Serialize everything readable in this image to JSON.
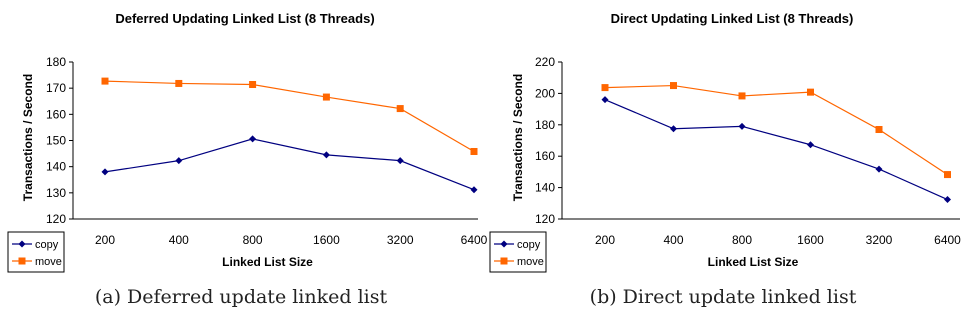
{
  "chart_data": [
    {
      "type": "line",
      "title": "Deferred Updating Linked List (8 Threads)",
      "xlabel": "Linked List Size",
      "ylabel": "Transactions / Second",
      "categories": [
        "200",
        "400",
        "800",
        "1600",
        "3200",
        "6400"
      ],
      "ylim": [
        120,
        180
      ],
      "yticks": [
        120,
        130,
        140,
        150,
        160,
        170,
        180
      ],
      "grid": false,
      "legend": "bottom-left",
      "series": [
        {
          "name": "copy",
          "values": [
            138,
            142.3,
            150.6,
            144.5,
            142.3,
            131.2
          ],
          "color": "#000080",
          "marker": "diamond"
        },
        {
          "name": "move",
          "values": [
            172.7,
            171.8,
            171.4,
            166.6,
            162.2,
            145.8
          ],
          "color": "#ff6600",
          "marker": "square"
        }
      ],
      "caption": "(a) Deferred update linked list"
    },
    {
      "type": "line",
      "title": "Direct Updating Linked List (8 Threads)",
      "xlabel": "Linked List Size",
      "ylabel": "Transactions / Second",
      "categories": [
        "200",
        "400",
        "800",
        "1600",
        "3200",
        "6400"
      ],
      "ylim": [
        120,
        220
      ],
      "yticks": [
        120,
        140,
        160,
        180,
        200,
        220
      ],
      "grid": false,
      "legend": "bottom-left",
      "series": [
        {
          "name": "copy",
          "values": [
            196,
            177.5,
            179,
            167.3,
            151.8,
            132.4
          ],
          "color": "#000080",
          "marker": "diamond"
        },
        {
          "name": "move",
          "values": [
            203.7,
            205,
            198.4,
            200.8,
            177,
            148.3
          ],
          "color": "#ff6600",
          "marker": "square"
        }
      ],
      "caption": "(b) Direct update linked list"
    }
  ]
}
